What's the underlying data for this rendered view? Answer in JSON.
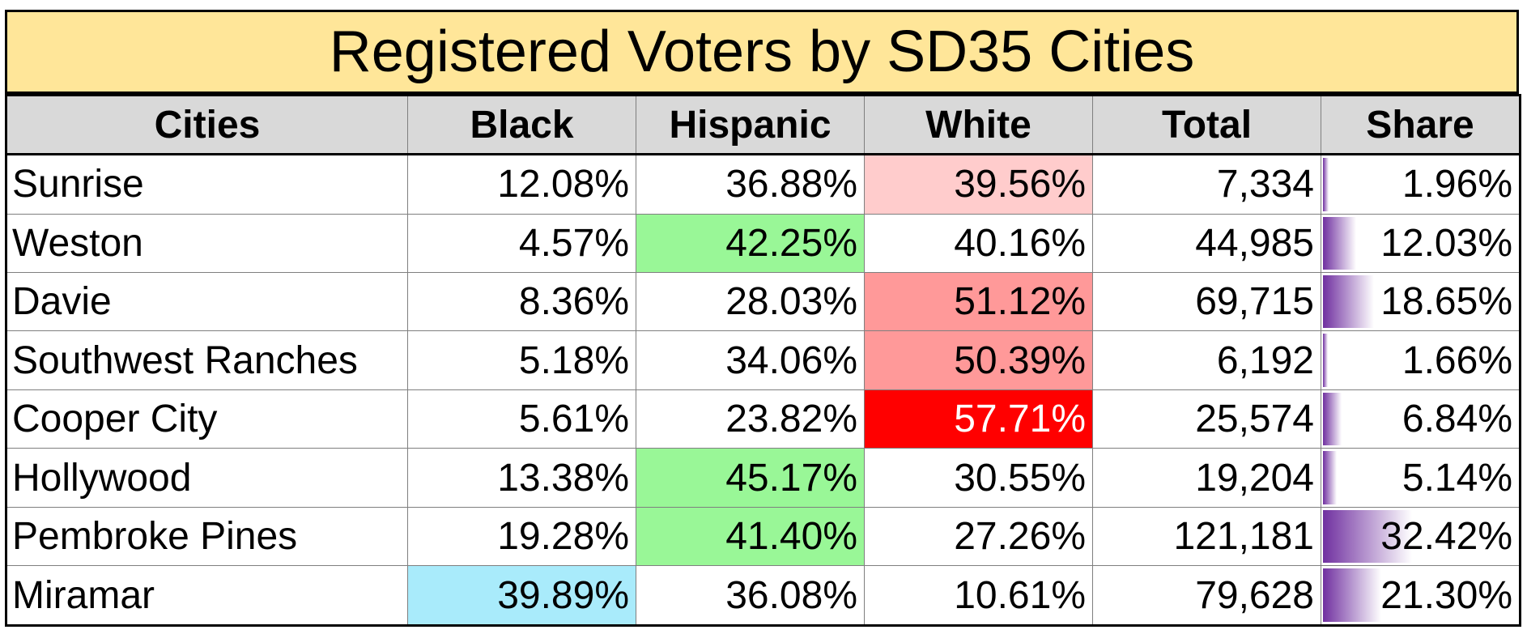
{
  "table": {
    "title": "Registered Voters by SD35 Cities",
    "columns": [
      "Cities",
      "Black",
      "Hispanic",
      "White",
      "Total",
      "Share"
    ],
    "rows": [
      {
        "city": "Sunrise",
        "black": "12.08%",
        "hispanic": "36.88%",
        "white": "39.56%",
        "total": "7,334",
        "share": "1.96%"
      },
      {
        "city": "Weston",
        "black": "4.57%",
        "hispanic": "42.25%",
        "white": "40.16%",
        "total": "44,985",
        "share": "12.03%"
      },
      {
        "city": "Davie",
        "black": "8.36%",
        "hispanic": "28.03%",
        "white": "51.12%",
        "total": "69,715",
        "share": "18.65%"
      },
      {
        "city": "Southwest Ranches",
        "black": "5.18%",
        "hispanic": "34.06%",
        "white": "50.39%",
        "total": "6,192",
        "share": "1.66%"
      },
      {
        "city": "Cooper City",
        "black": "5.61%",
        "hispanic": "23.82%",
        "white": "57.71%",
        "total": "25,574",
        "share": "6.84%"
      },
      {
        "city": "Hollywood",
        "black": "13.38%",
        "hispanic": "45.17%",
        "white": "30.55%",
        "total": "19,204",
        "share": "5.14%"
      },
      {
        "city": "Pembroke Pines",
        "black": "19.28%",
        "hispanic": "41.40%",
        "white": "27.26%",
        "total": "121,181",
        "share": "32.42%"
      },
      {
        "city": "Miramar",
        "black": "39.89%",
        "hispanic": "36.08%",
        "white": "10.61%",
        "total": "79,628",
        "share": "21.30%"
      }
    ]
  },
  "chart_data": {
    "type": "table",
    "title": "Registered Voters by SD35 Cities",
    "columns": [
      "Cities",
      "Black",
      "Hispanic",
      "White",
      "Total",
      "Share"
    ],
    "rows": [
      [
        "Sunrise",
        12.08,
        36.88,
        39.56,
        7334,
        1.96
      ],
      [
        "Weston",
        4.57,
        42.25,
        40.16,
        44985,
        12.03
      ],
      [
        "Davie",
        8.36,
        28.03,
        51.12,
        69715,
        18.65
      ],
      [
        "Southwest Ranches",
        5.18,
        34.06,
        50.39,
        6192,
        1.66
      ],
      [
        "Cooper City",
        5.61,
        23.82,
        57.71,
        25574,
        6.84
      ],
      [
        "Hollywood",
        13.38,
        45.17,
        30.55,
        19204,
        5.14
      ],
      [
        "Pembroke Pines",
        19.28,
        41.4,
        27.26,
        121181,
        32.42
      ],
      [
        "Miramar",
        39.89,
        36.08,
        10.61,
        79628,
        21.3
      ]
    ],
    "share_databar_max": 32.42
  },
  "colors": {
    "title_bg": "#ffe699",
    "header_bg": "#d9d9d9",
    "black_highlight": "#a9ebfb",
    "hispanic_highlight": "#99f797",
    "white_highlight_light": "#ffcccc",
    "white_highlight_medium": "#ff9999",
    "white_highlight_strong": "#ff0000",
    "databar": "#7030a0"
  },
  "highlights": {
    "black": [
      "",
      "",
      "",
      "",
      "",
      "",
      "",
      "#a9ebfb"
    ],
    "hispanic": [
      "",
      "#99f797",
      "",
      "",
      "",
      "#99f797",
      "#99f797",
      ""
    ],
    "white": [
      "#ffcccc",
      "",
      "#ff9999",
      "#ff9999",
      "#ff0000",
      "",
      "",
      ""
    ],
    "white_text": [
      "#000000",
      "#000000",
      "#000000",
      "#000000",
      "#ffffff",
      "#000000",
      "#000000",
      "#000000"
    ]
  }
}
